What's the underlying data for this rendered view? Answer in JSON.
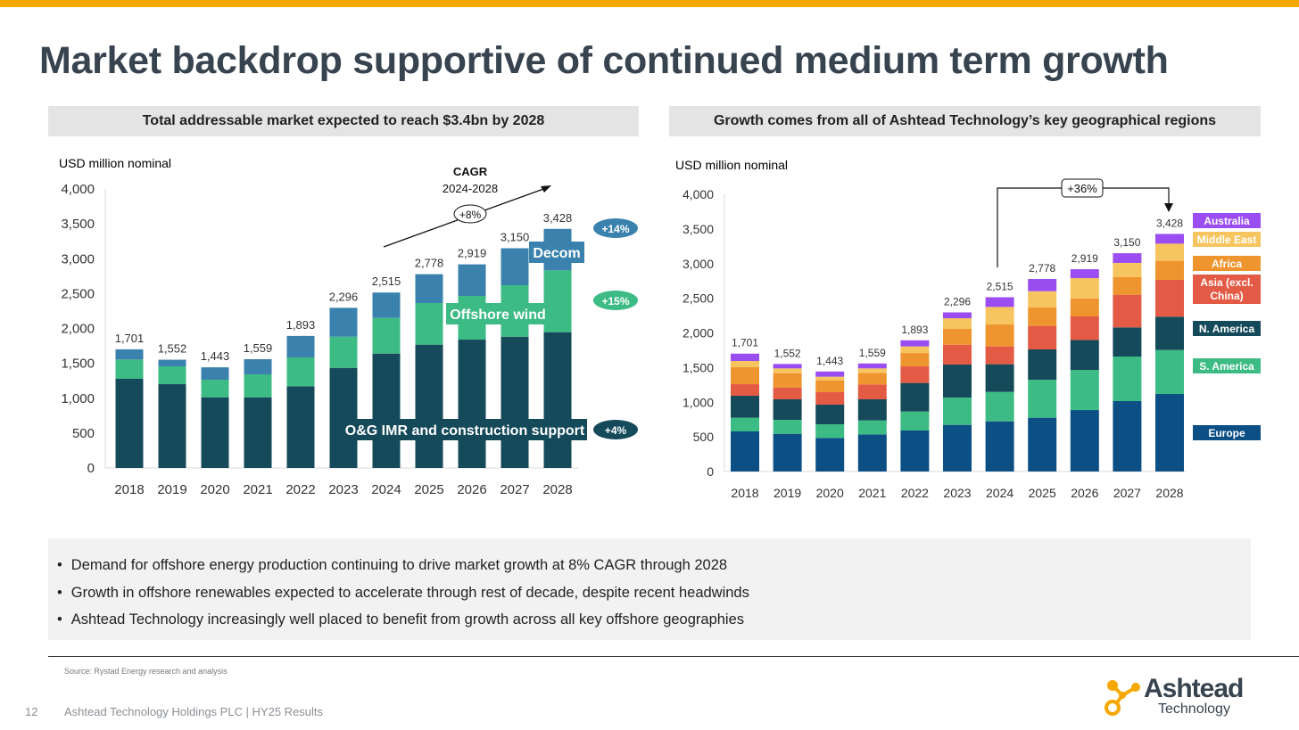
{
  "title": "Market backdrop supportive of continued medium term growth",
  "left_panel": {
    "header": "Total addressable market expected to reach $3.4bn by 2028",
    "unit": "USD million nominal",
    "cagr_title": "CAGR",
    "cagr_period": "2024-2028",
    "cagr_value": "+8%",
    "series_labels": {
      "decom": "Decom",
      "wind": "Offshore wind",
      "og": "O&G IMR and construction support"
    },
    "growth": {
      "decom": "+14%",
      "wind": "+15%",
      "og": "+4%"
    }
  },
  "right_panel": {
    "header": "Growth comes from all of Ashtead Technology’s key geographical regions",
    "unit": "USD million nominal",
    "growth_label": "+36%"
  },
  "chart_data": [
    {
      "type": "bar",
      "stacked": true,
      "title": "Total addressable market expected to reach $3.4bn by 2028",
      "ylabel": "USD million nominal",
      "ylim": [
        0,
        4000
      ],
      "yticks": [
        "0",
        "500",
        "1,000",
        "1,500",
        "2,000",
        "2,500",
        "3,000",
        "3,500",
        "4,000"
      ],
      "categories": [
        "2018",
        "2019",
        "2020",
        "2021",
        "2022",
        "2023",
        "2024",
        "2025",
        "2026",
        "2027",
        "2028"
      ],
      "totals": [
        "1,701",
        "1,552",
        "1,443",
        "1,559",
        "1,893",
        "2,296",
        "2,515",
        "2,778",
        "2,919",
        "3,150",
        "3,428"
      ],
      "series": [
        {
          "name": "O&G IMR and construction support",
          "color": "#154a5a",
          "values": [
            1278,
            1201,
            1013,
            1013,
            1172,
            1435,
            1640,
            1768,
            1840,
            1882,
            1947
          ]
        },
        {
          "name": "Offshore wind",
          "color": "#3dbb84",
          "values": [
            277,
            256,
            252,
            329,
            413,
            447,
            511,
            596,
            626,
            738,
            886
          ]
        },
        {
          "name": "Decom",
          "color": "#3a82ad",
          "values": [
            146,
            95,
            178,
            217,
            308,
            414,
            364,
            414,
            453,
            530,
            595
          ]
        }
      ]
    },
    {
      "type": "bar",
      "stacked": true,
      "title": "Growth comes from all of Ashtead Technology’s key geographical regions",
      "ylabel": "USD million nominal",
      "ylim": [
        0,
        4000
      ],
      "yticks": [
        "0",
        "500",
        "1,000",
        "1,500",
        "2,000",
        "2,500",
        "3,000",
        "3,500",
        "4,000"
      ],
      "categories": [
        "2018",
        "2019",
        "2020",
        "2021",
        "2022",
        "2023",
        "2024",
        "2025",
        "2026",
        "2027",
        "2028"
      ],
      "totals": [
        "1,701",
        "1,552",
        "1,443",
        "1,559",
        "1,893",
        "2,296",
        "2,515",
        "2,778",
        "2,919",
        "3,150",
        "3,428"
      ],
      "series": [
        {
          "name": "Europe",
          "color": "#0b4f85",
          "values": [
            579,
            544,
            484,
            536,
            592,
            673,
            724,
            776,
            887,
            1016,
            1119
          ]
        },
        {
          "name": "S. America",
          "color": "#3dbb84",
          "values": [
            197,
            202,
            198,
            201,
            274,
            395,
            425,
            549,
            579,
            643,
            634
          ]
        },
        {
          "name": "N. America",
          "color": "#154a5a",
          "values": [
            317,
            296,
            283,
            305,
            412,
            475,
            399,
            437,
            433,
            420,
            481
          ]
        },
        {
          "name": "Asia (excl. China)",
          "color": "#e35a45",
          "values": [
            167,
            171,
            180,
            214,
            240,
            287,
            257,
            339,
            339,
            472,
            531
          ]
        },
        {
          "name": "Africa",
          "color": "#ef9530",
          "values": [
            245,
            206,
            171,
            167,
            192,
            232,
            317,
            265,
            261,
            253,
            275
          ]
        },
        {
          "name": "Middle East",
          "color": "#f7c55f",
          "values": [
            90,
            69,
            52,
            65,
            95,
            150,
            253,
            236,
            292,
            206,
            248
          ]
        },
        {
          "name": "Australia",
          "color": "#9a4ef1",
          "values": [
            106,
            64,
            75,
            71,
            88,
            84,
            140,
            176,
            128,
            140,
            140
          ]
        }
      ]
    }
  ],
  "bullets": [
    "Demand for offshore energy production continuing to drive market growth at 8% CAGR through 2028",
    "Growth in offshore renewables expected to accelerate through rest of decade, despite recent headwinds",
    "Ashtead Technology increasingly well placed to benefit from growth across all key offshore geographies"
  ],
  "source": "Source: Rystad Energy research and analysis",
  "page_number": "12",
  "footer": "Ashtead Technology Holdings PLC | HY25 Results",
  "logo": {
    "name": "Ashtead",
    "sub": "Technology"
  },
  "colors": {
    "accent": "#f5a800",
    "text": "#37434f"
  }
}
